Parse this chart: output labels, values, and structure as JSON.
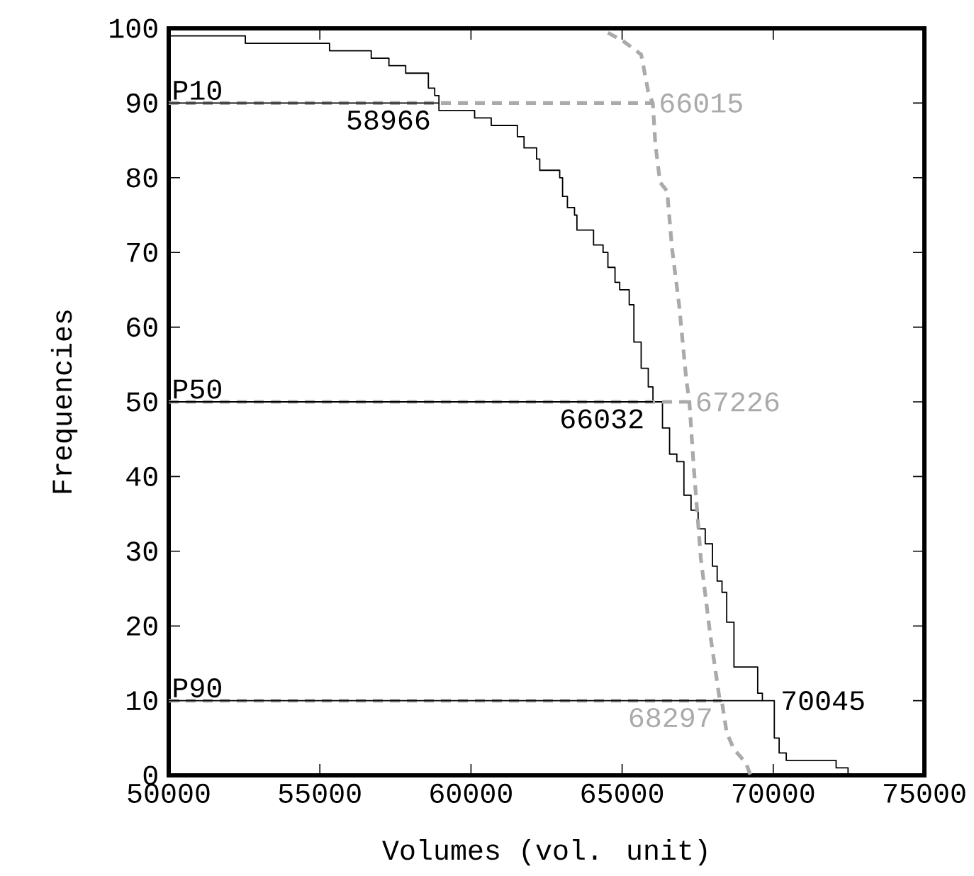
{
  "chart_data": {
    "type": "line",
    "xlabel": "Volumes (vol. unit)",
    "ylabel": "Frequencies",
    "xlim": [
      50000,
      75000
    ],
    "ylim": [
      0,
      100
    ],
    "xticks": [
      50000,
      55000,
      60000,
      65000,
      70000,
      75000
    ],
    "yticks": [
      0,
      10,
      20,
      30,
      40,
      50,
      60,
      70,
      80,
      90,
      100
    ],
    "series": [
      {
        "type": "step",
        "color": "#000000",
        "line_style": "solid",
        "x": [
          50000,
          52535,
          55320,
          56700,
          57285,
          57840,
          58590,
          58800,
          58940,
          60120,
          60670,
          61535,
          61755,
          62170,
          62275,
          62935,
          63030,
          63190,
          63425,
          63505,
          64055,
          64370,
          64530,
          64765,
          64920,
          65235,
          65390,
          65630,
          65865,
          66020,
          66335,
          66570,
          66810,
          67045,
          67280,
          67515,
          67750,
          67990,
          68145,
          68305,
          68460,
          68700,
          69485,
          69640,
          70035,
          70195,
          70430,
          70665,
          72080,
          72475
        ],
        "values": [
          99,
          98,
          97,
          96,
          95,
          94,
          92,
          91,
          89,
          88,
          87,
          85.5,
          84,
          82.5,
          81,
          80,
          77.5,
          76,
          75,
          73,
          71,
          70,
          68,
          66,
          65,
          63,
          58,
          54.5,
          52,
          50,
          46.5,
          43,
          42,
          37.5,
          35.5,
          33,
          31,
          28,
          26,
          24.5,
          20.5,
          14.5,
          11,
          10,
          5,
          3,
          2,
          2,
          1,
          0
        ]
      },
      {
        "color": "#aaaaaa",
        "line_style": "dashed",
        "x": [
          64530,
          65000,
          65630,
          65865,
          66015,
          66100,
          66255,
          66490,
          66650,
          66885,
          67125,
          67226,
          67360,
          67600,
          67910,
          68225,
          68297,
          68460,
          68700,
          69090,
          69250
        ],
        "values": [
          99.4,
          98.4,
          96.5,
          91.5,
          90,
          84.5,
          79.4,
          78.2,
          70.6,
          63,
          52.9,
          50,
          41.8,
          29.2,
          19,
          10.2,
          10,
          5.7,
          3.5,
          1.7,
          0
        ]
      }
    ],
    "ref_lines": [
      {
        "axis": "y",
        "value": 90,
        "label": "P10"
      },
      {
        "axis": "y",
        "value": 50,
        "label": "P50"
      },
      {
        "axis": "y",
        "value": 10,
        "label": "P90"
      }
    ],
    "annotations": [
      {
        "text": "58966",
        "x": 58966,
        "y": 90
      },
      {
        "text": "66015",
        "x": 66015,
        "y": 90
      },
      {
        "text": "66032",
        "x": 66032,
        "y": 50
      },
      {
        "text": "67226",
        "x": 67226,
        "y": 50
      },
      {
        "text": "70045",
        "x": 70045,
        "y": 10
      },
      {
        "text": "68297",
        "x": 68297,
        "y": 10
      }
    ]
  }
}
